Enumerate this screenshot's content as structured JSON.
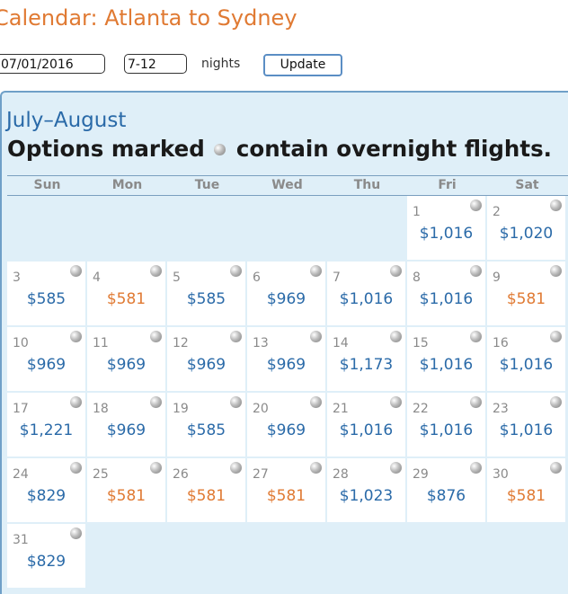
{
  "header": {
    "title": "Calendar: Atlanta to Sydney"
  },
  "controls": {
    "date_value": "07/01/2016",
    "nights_value": "7-12",
    "nights_label": "nights",
    "update_label": "Update"
  },
  "calendar": {
    "month_label": "July–August",
    "notice_before": "Options marked",
    "notice_after": "contain overnight flights.",
    "weekdays": [
      "Sun",
      "Mon",
      "Tue",
      "Wed",
      "Thu",
      "Fri",
      "Sat"
    ],
    "price_colors": {
      "normal": "#2a6aa8",
      "lowest": "#e07a33"
    },
    "days": [
      {
        "day": "1",
        "price": "$1,016",
        "lowest": false,
        "overnight": true
      },
      {
        "day": "2",
        "price": "$1,020",
        "lowest": false,
        "overnight": true
      },
      {
        "day": "3",
        "price": "$585",
        "lowest": false,
        "overnight": true
      },
      {
        "day": "4",
        "price": "$581",
        "lowest": true,
        "overnight": true
      },
      {
        "day": "5",
        "price": "$585",
        "lowest": false,
        "overnight": true
      },
      {
        "day": "6",
        "price": "$969",
        "lowest": false,
        "overnight": true
      },
      {
        "day": "7",
        "price": "$1,016",
        "lowest": false,
        "overnight": true
      },
      {
        "day": "8",
        "price": "$1,016",
        "lowest": false,
        "overnight": true
      },
      {
        "day": "9",
        "price": "$581",
        "lowest": true,
        "overnight": true
      },
      {
        "day": "10",
        "price": "$969",
        "lowest": false,
        "overnight": true
      },
      {
        "day": "11",
        "price": "$969",
        "lowest": false,
        "overnight": true
      },
      {
        "day": "12",
        "price": "$969",
        "lowest": false,
        "overnight": true
      },
      {
        "day": "13",
        "price": "$969",
        "lowest": false,
        "overnight": true
      },
      {
        "day": "14",
        "price": "$1,173",
        "lowest": false,
        "overnight": true
      },
      {
        "day": "15",
        "price": "$1,016",
        "lowest": false,
        "overnight": true
      },
      {
        "day": "16",
        "price": "$1,016",
        "lowest": false,
        "overnight": true
      },
      {
        "day": "17",
        "price": "$1,221",
        "lowest": false,
        "overnight": true
      },
      {
        "day": "18",
        "price": "$969",
        "lowest": false,
        "overnight": true
      },
      {
        "day": "19",
        "price": "$585",
        "lowest": false,
        "overnight": true
      },
      {
        "day": "20",
        "price": "$969",
        "lowest": false,
        "overnight": true
      },
      {
        "day": "21",
        "price": "$1,016",
        "lowest": false,
        "overnight": true
      },
      {
        "day": "22",
        "price": "$1,016",
        "lowest": false,
        "overnight": true
      },
      {
        "day": "23",
        "price": "$1,016",
        "lowest": false,
        "overnight": true
      },
      {
        "day": "24",
        "price": "$829",
        "lowest": false,
        "overnight": true
      },
      {
        "day": "25",
        "price": "$581",
        "lowest": true,
        "overnight": true
      },
      {
        "day": "26",
        "price": "$581",
        "lowest": true,
        "overnight": true
      },
      {
        "day": "27",
        "price": "$581",
        "lowest": true,
        "overnight": true
      },
      {
        "day": "28",
        "price": "$1,023",
        "lowest": false,
        "overnight": true
      },
      {
        "day": "29",
        "price": "$876",
        "lowest": false,
        "overnight": true
      },
      {
        "day": "30",
        "price": "$581",
        "lowest": true,
        "overnight": true
      },
      {
        "day": "31",
        "price": "$829",
        "lowest": false,
        "overnight": true
      }
    ],
    "start_weekday": 5
  }
}
